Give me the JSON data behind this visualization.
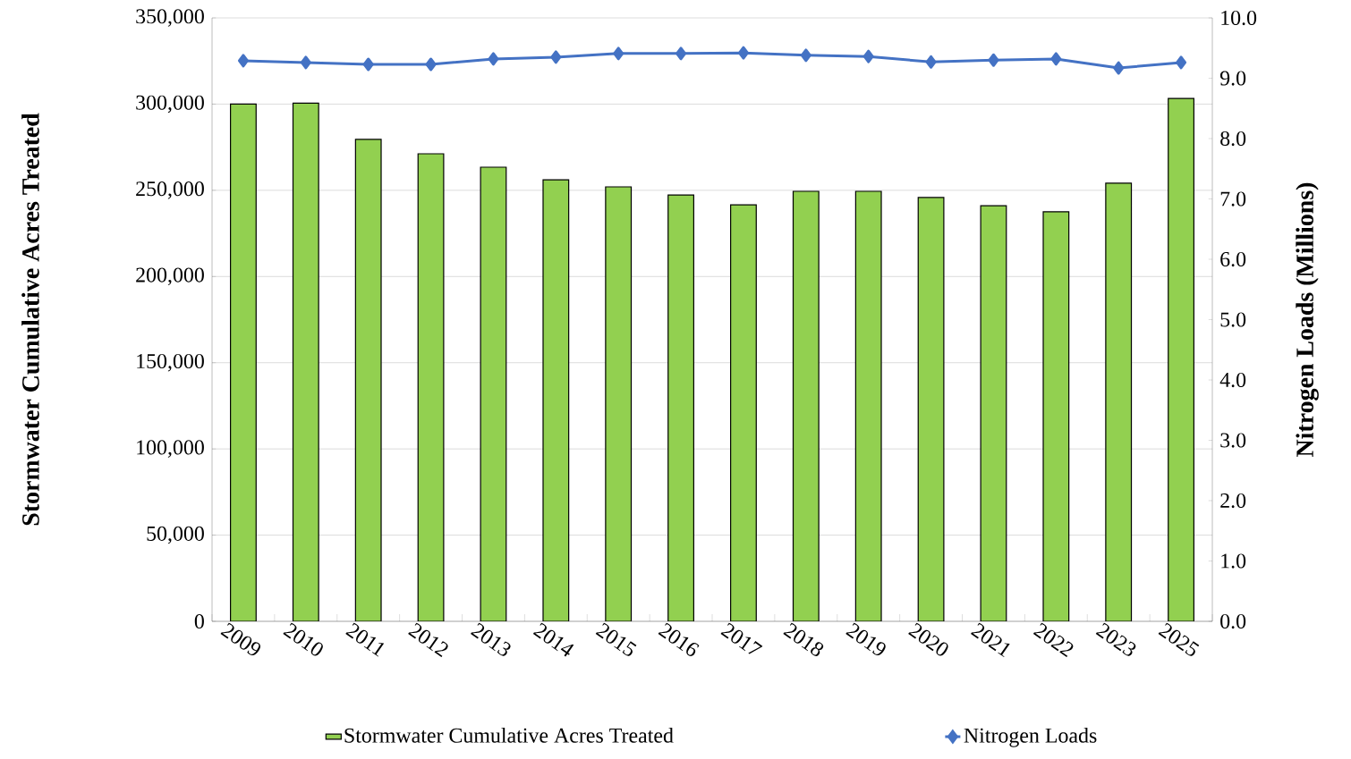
{
  "chart_data": {
    "type": "bar",
    "categories": [
      "2009",
      "2010",
      "2011",
      "2012",
      "2013",
      "2014",
      "2015",
      "2016",
      "2017",
      "2018",
      "2019",
      "2020",
      "2021",
      "2022",
      "2023",
      "2025"
    ],
    "series": [
      {
        "name": "Stormwater Cumulative Acres Treated",
        "color": "#92d050",
        "values": [
          300000,
          300500,
          279500,
          271200,
          263400,
          256100,
          252000,
          247300,
          241600,
          249400,
          249400,
          245800,
          241100,
          237500,
          254100,
          303300
        ]
      },
      {
        "name": "Nitrogen Loads",
        "type": "line",
        "axis": "y2",
        "color": "#4472c4",
        "marker": "diamond",
        "values": [
          9.29,
          9.26,
          9.23,
          9.23,
          9.32,
          9.35,
          9.41,
          9.41,
          9.42,
          9.38,
          9.36,
          9.27,
          9.3,
          9.32,
          9.17,
          9.26
        ]
      }
    ],
    "ylabel": "Stormwater Cumulative  Acres Treated",
    "y2label": "Nitrogen Loads (Millions)",
    "ylim": [
      0,
      350000
    ],
    "yticks": [
      {
        "value": 0,
        "label": "0"
      },
      {
        "value": 50000,
        "label": "50,000"
      },
      {
        "value": 100000,
        "label": "100,000"
      },
      {
        "value": 150000,
        "label": "150,000"
      },
      {
        "value": 200000,
        "label": "200,000"
      },
      {
        "value": 250000,
        "label": "250,000"
      },
      {
        "value": 300000,
        "label": "300,000"
      },
      {
        "value": 350000,
        "label": "350,000"
      }
    ],
    "y2lim": [
      0,
      10
    ],
    "y2ticks": [
      {
        "value": 0,
        "label": "0.0"
      },
      {
        "value": 1,
        "label": "1.0"
      },
      {
        "value": 2,
        "label": "2.0"
      },
      {
        "value": 3,
        "label": "3.0"
      },
      {
        "value": 4,
        "label": "4.0"
      },
      {
        "value": 5,
        "label": "5.0"
      },
      {
        "value": 6,
        "label": "6.0"
      },
      {
        "value": 7,
        "label": "7.0"
      },
      {
        "value": 8,
        "label": "8.0"
      },
      {
        "value": 9,
        "label": "9.0"
      },
      {
        "value": 10,
        "label": "10.0"
      }
    ],
    "grid": "y",
    "legend": "bottom"
  }
}
